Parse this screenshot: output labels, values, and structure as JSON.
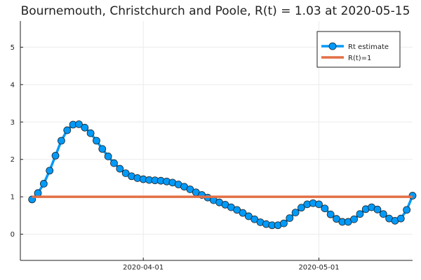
{
  "chart_data": {
    "type": "line",
    "title": "Bournemouth, Christchurch and Poole, R(t) = 1.03 at 2020-05-15",
    "xlabel": "",
    "ylabel": "",
    "x_start": "2020-03-13",
    "x_step_days": 1,
    "xlim": [
      "2020-03-11",
      "2020-05-17"
    ],
    "ylim": [
      -0.7,
      5.7
    ],
    "yticks": [
      0,
      1,
      2,
      3,
      4,
      5
    ],
    "xticks": [
      {
        "date": "2020-04-01",
        "label": "2020-04-01"
      },
      {
        "date": "2020-05-01",
        "label": "2020-05-01"
      }
    ],
    "grid": true,
    "legend_position": "top-right",
    "series": [
      {
        "name": "Rt estimate",
        "color": "#009af9",
        "marker": "circle",
        "values": [
          0.93,
          1.1,
          1.35,
          1.7,
          2.1,
          2.5,
          2.78,
          2.93,
          2.94,
          2.85,
          2.7,
          2.5,
          2.28,
          2.08,
          1.9,
          1.75,
          1.63,
          1.55,
          1.5,
          1.47,
          1.45,
          1.44,
          1.43,
          1.41,
          1.38,
          1.33,
          1.27,
          1.2,
          1.12,
          1.05,
          0.98,
          0.91,
          0.85,
          0.79,
          0.72,
          0.65,
          0.57,
          0.48,
          0.4,
          0.32,
          0.27,
          0.24,
          0.24,
          0.29,
          0.43,
          0.58,
          0.71,
          0.8,
          0.83,
          0.8,
          0.69,
          0.53,
          0.41,
          0.33,
          0.33,
          0.4,
          0.54,
          0.67,
          0.72,
          0.66,
          0.54,
          0.42,
          0.36,
          0.42,
          0.65,
          1.03
        ]
      },
      {
        "name": "R(t)=1",
        "color": "#e26f46",
        "marker": "none",
        "constant": 1.0,
        "x_range": [
          "2020-03-13",
          "2020-05-17"
        ]
      }
    ]
  }
}
